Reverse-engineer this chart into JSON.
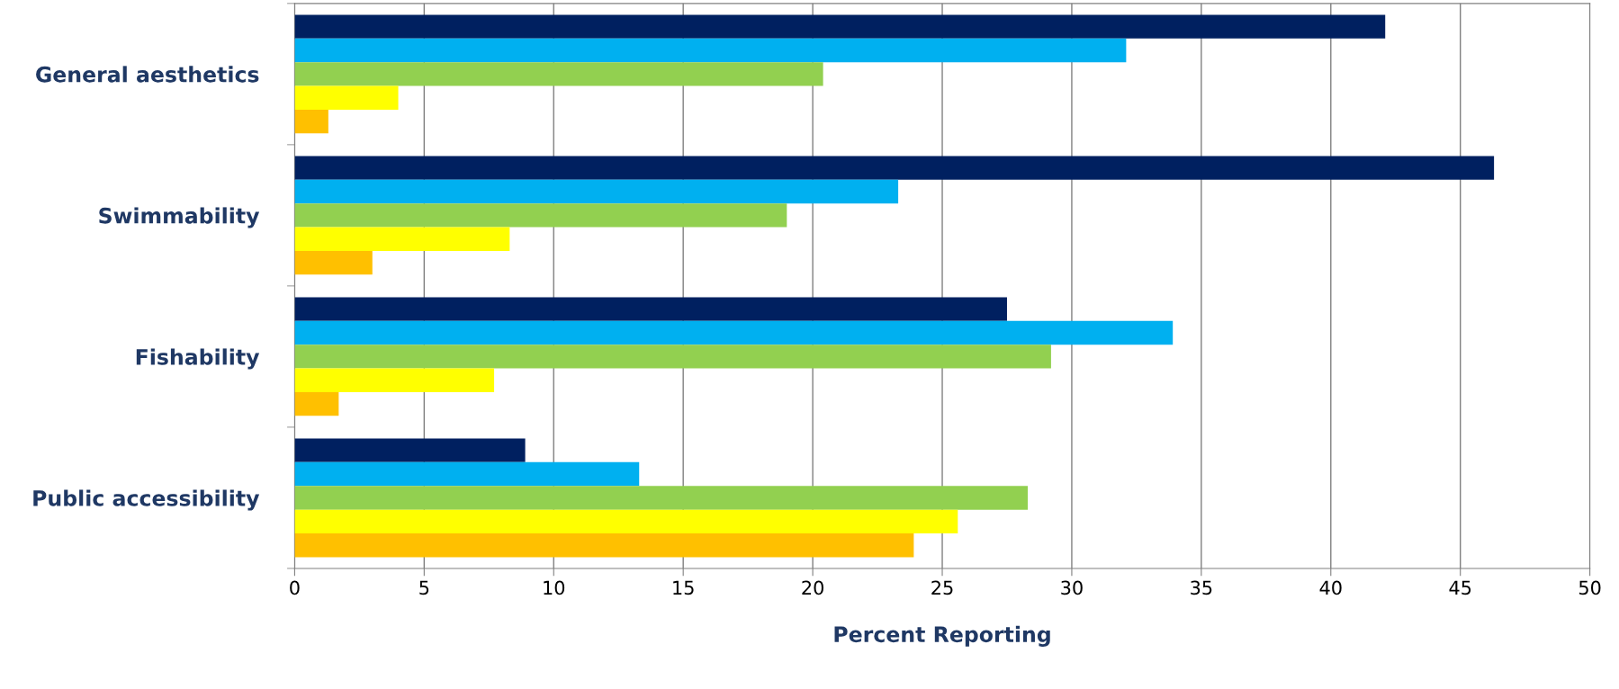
{
  "chart_data": {
    "type": "bar",
    "orientation": "horizontal",
    "xlabel": "Percent Reporting",
    "categories": [
      "General aesthetics",
      "Swimmability",
      "Fishability",
      "Public accessibility"
    ],
    "series": [
      {
        "color": "#002060",
        "values": [
          42.1,
          46.3,
          27.5,
          8.9
        ]
      },
      {
        "color": "#00b0f0",
        "values": [
          32.1,
          23.3,
          33.9,
          13.3
        ]
      },
      {
        "color": "#92d050",
        "values": [
          20.4,
          19.0,
          29.2,
          28.3
        ]
      },
      {
        "color": "#ffff00",
        "values": [
          4.0,
          8.3,
          7.7,
          25.6
        ]
      },
      {
        "color": "#ffc000",
        "values": [
          1.3,
          3.0,
          1.7,
          23.9
        ]
      }
    ],
    "xlim": [
      0,
      50
    ],
    "xticks": [
      0,
      5,
      10,
      15,
      20,
      25,
      30,
      35,
      40,
      45,
      50
    ],
    "grid": "x",
    "legend": false
  }
}
